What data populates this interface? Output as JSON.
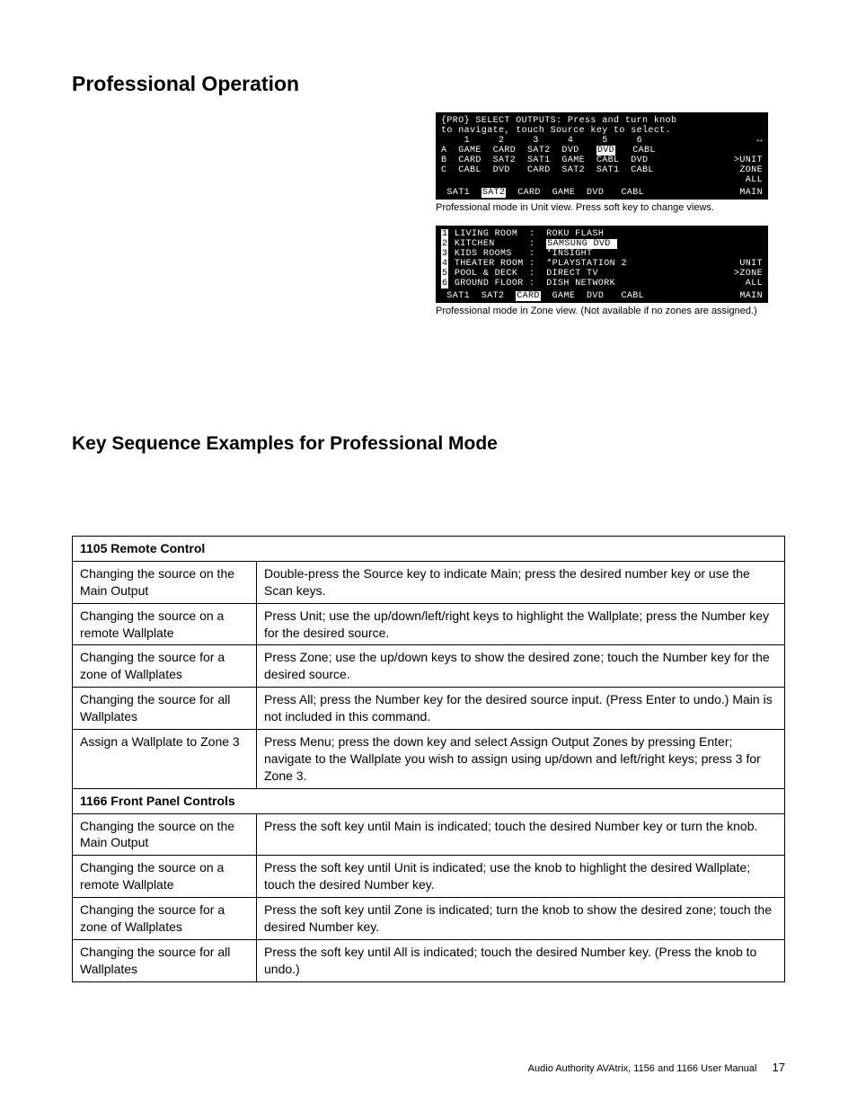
{
  "page": {
    "title": "Professional Operation",
    "section_title": "Key Sequence Examples for Professional Mode",
    "footer_text": "Audio Authority AVAtrix, 1156 and 1166 User Manual",
    "page_number": "17"
  },
  "lcd1": {
    "hdr1": "{PRO} SELECT OUTPUTS: Press and turn knob",
    "hdr2": "to navigate, touch Source key to select.",
    "cols": "    1     2     3     4     5     6",
    "arrow": "↔",
    "rowA_l": "A  GAME  CARD  SAT2  DVD   ",
    "rowA_hl": "DVD",
    "rowA_r": "   CABL",
    "rowB": "B  CARD  SAT2  SAT1  GAME  CABL  DVD",
    "rowC": "C  CABL  DVD   CARD  SAT2  SAT1  CABL",
    "side_unit": ">UNIT",
    "side_zone": " ZONE",
    "side_all": " ALL",
    "foot_l": " SAT1  ",
    "foot_hl": "SAT2",
    "foot_r": "  CARD  GAME  DVD   CABL",
    "side_main": " MAIN",
    "caption": "Professional mode in Unit view. Press soft key to change views."
  },
  "lcd2": {
    "r1_n": "1",
    "r1_a": "LIVING ROOM ",
    "r1_b": "ROKU FLASH",
    "r2_n": "2",
    "r2_a": "KITCHEN     ",
    "r2_b_hl": "SAMSUNG DVD ",
    "r3_n": "3",
    "r3_a": "KIDS ROOMS  ",
    "r3_b": "*INSIGHT",
    "r4_n": "4",
    "r4_a": "THEATER ROOM",
    "r4_b": "*PLAYSTATION 2",
    "r5_n": "5",
    "r5_a": "POOL & DECK ",
    "r5_b": "DIRECT TV",
    "r6_n": "6",
    "r6_a": "GROUND FLOOR",
    "r6_b": "DISH NETWORK",
    "side_unit": " UNIT",
    "side_zone": ">ZONE",
    "side_all": " ALL",
    "side_main": " MAIN",
    "foot_l": " SAT1  SAT2  ",
    "foot_hl": "CARD",
    "foot_r": "  GAME  DVD   CABL",
    "caption": "Professional mode in Zone view. (Not available if no zones are assigned.)"
  },
  "table": {
    "header1": "1105 Remote Control",
    "rows1": [
      [
        "Changing the source on the Main Output",
        "Double-press the Source key to indicate Main; press the desired number key or use the Scan keys."
      ],
      [
        "Changing the source on a remote Wallplate",
        "Press Unit; use the up/down/left/right keys to highlight the Wallplate; press the Number key for the desired source."
      ],
      [
        "Changing the source for a zone of Wallplates",
        "Press Zone; use the up/down keys to show the desired zone; touch the Number key for the desired source."
      ],
      [
        "Changing the source for all Wallplates",
        "Press All; press the Number key for the desired source input. (Press Enter to undo.) Main is not included in this command."
      ],
      [
        "Assign a Wallplate to Zone 3",
        "Press Menu; press the down key and select Assign Output Zones by pressing Enter; navigate to the Wallplate you wish to assign using up/down and left/right keys; press 3 for Zone 3."
      ]
    ],
    "header2": "1166 Front Panel Controls",
    "rows2": [
      [
        "Changing the source on the Main Output",
        "Press the soft key until Main is indicated; touch the desired Number key or turn the knob."
      ],
      [
        "Changing the source on a remote Wallplate",
        "Press the soft key until Unit is indicated; use the knob to highlight the desired Wallplate; touch the desired Number key."
      ],
      [
        "Changing the source for a zone of Wallplates",
        "Press the soft key until Zone is indicated; turn the knob to show the desired zone; touch the desired Number key."
      ],
      [
        "Changing the source for all Wallplates",
        "Press the soft key until All is indicated; touch the desired Number key. (Press the knob to undo.)"
      ]
    ]
  }
}
